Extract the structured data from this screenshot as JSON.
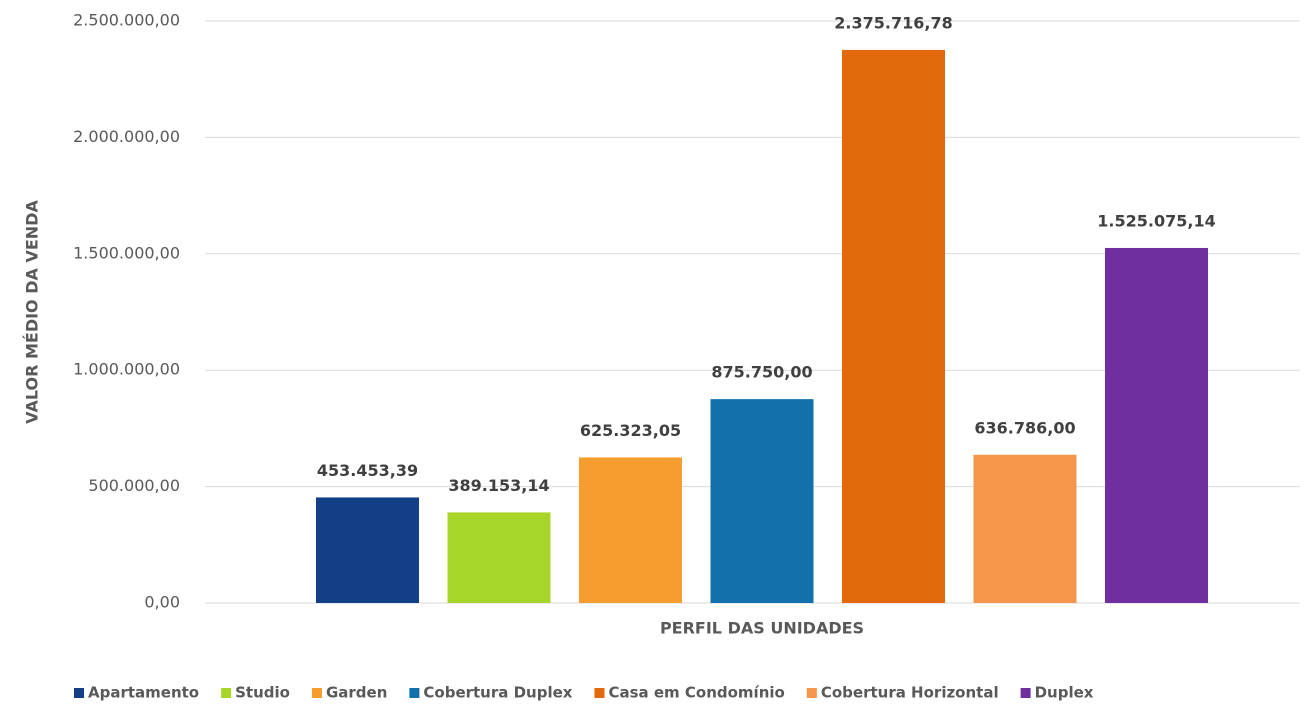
{
  "chart_data": {
    "type": "bar",
    "x_label": "PERFIL DAS UNIDADES",
    "y_label": "VALOR MÉDIO DA VENDA",
    "categories": [
      null
    ],
    "series": [
      {
        "name": "Apartamento",
        "color": "#123f85",
        "values": [
          453453.39
        ],
        "value_labels": [
          "453.453,39"
        ]
      },
      {
        "name": "Studio",
        "color": "#a8d52a",
        "values": [
          389153.14
        ],
        "value_labels": [
          "389.153,14"
        ]
      },
      {
        "name": "Garden",
        "color": "#f59d2f",
        "values": [
          625323.05
        ],
        "value_labels": [
          "625.323,05"
        ]
      },
      {
        "name": "Cobertura Duplex",
        "color": "#1370ad",
        "values": [
          875750.0
        ],
        "value_labels": [
          "875.750,00"
        ]
      },
      {
        "name": "Casa em Condomínio",
        "color": "#e2690b",
        "values": [
          2375716.78
        ],
        "value_labels": [
          "2.375.716,78"
        ]
      },
      {
        "name": "Cobertura Horizontal",
        "color": "#f5964a",
        "values": [
          636786.0
        ],
        "value_labels": [
          "636.786,00"
        ]
      },
      {
        "name": "Duplex",
        "color": "#702f9e",
        "values": [
          1525075.14
        ],
        "value_labels": [
          "1.525.075,14"
        ]
      }
    ],
    "ylim": [
      0,
      2500000
    ],
    "yticks": [
      {
        "value": 0,
        "label": "0,00"
      },
      {
        "value": 500000,
        "label": "500.000,00"
      },
      {
        "value": 1000000,
        "label": "1.000.000,00"
      },
      {
        "value": 1500000,
        "label": "1.500.000,00"
      },
      {
        "value": 2000000,
        "label": "2.000.000,00"
      },
      {
        "value": 2500000,
        "label": "2.500.000,00"
      }
    ],
    "grid": true,
    "legend": "bottom"
  }
}
